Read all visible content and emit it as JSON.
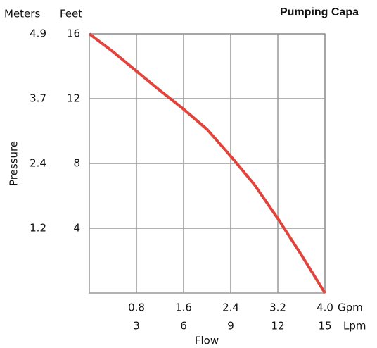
{
  "chart_data": {
    "type": "line",
    "title": "Pumping Capa",
    "x_label": "Flow",
    "y_label": "Pressure",
    "x_unit": "Gpm",
    "x2_unit": "Lpm",
    "y_unit": "Feet",
    "y2_unit": "Meters",
    "x": [
      0,
      0.4,
      0.8,
      1.2,
      1.6,
      2.0,
      2.4,
      2.8,
      3.2,
      3.6,
      4.0
    ],
    "series": [
      {
        "color": "#e0443c",
        "values": [
          16,
          14.9,
          13.7,
          12.5,
          11.35,
          10.1,
          8.45,
          6.7,
          4.6,
          2.35,
          0
        ]
      }
    ],
    "xlim": [
      0,
      4
    ],
    "xticks": [
      0.8,
      1.6,
      2.4,
      3.2,
      {
        "value": 4,
        "label": "4.0"
      }
    ],
    "x2_tick_labels": [
      3,
      6,
      9,
      12,
      15
    ],
    "ylim": [
      0,
      16
    ],
    "yticks": [
      4,
      8,
      12,
      16
    ],
    "y2_tick_labels": [
      1.2,
      2.4,
      3.7,
      4.9
    ],
    "grid": true
  }
}
